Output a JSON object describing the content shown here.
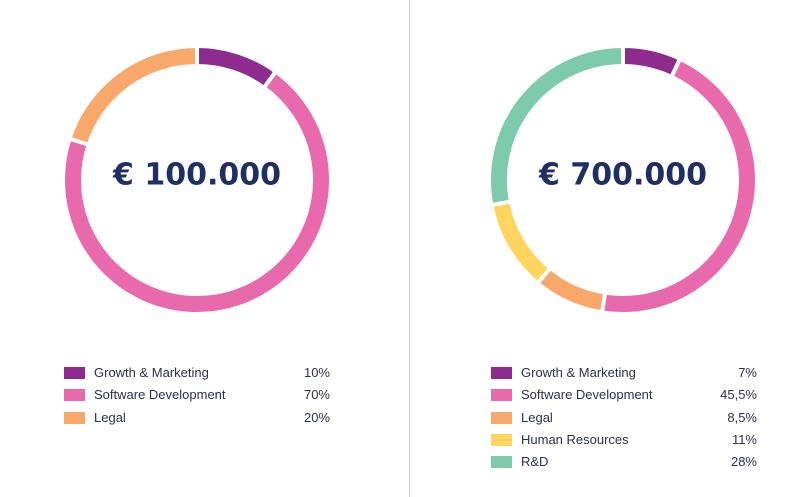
{
  "chart_data": [
    {
      "type": "pie",
      "variant": "donut",
      "center_label": "€ 100.000",
      "categories": [
        "Growth & Marketing",
        "Software Development",
        "Legal"
      ],
      "values": [
        10,
        70,
        20
      ],
      "value_labels": [
        "10%",
        "70%",
        "20%"
      ],
      "colors": [
        "#8e2b8f",
        "#e86aac",
        "#f8a86b"
      ],
      "legend_position": "bottom"
    },
    {
      "type": "pie",
      "variant": "donut",
      "center_label": "€ 700.000",
      "categories": [
        "Growth & Marketing",
        "Software Development",
        "Legal",
        "Human Resources",
        "R&D"
      ],
      "values": [
        7,
        45.5,
        8.5,
        11,
        28
      ],
      "value_labels": [
        "7%",
        "45,5%",
        "8,5%",
        "11%",
        "28%"
      ],
      "colors": [
        "#8e2b8f",
        "#e86aac",
        "#f8a86b",
        "#ffd45f",
        "#7dcbac"
      ],
      "legend_position": "bottom"
    }
  ]
}
